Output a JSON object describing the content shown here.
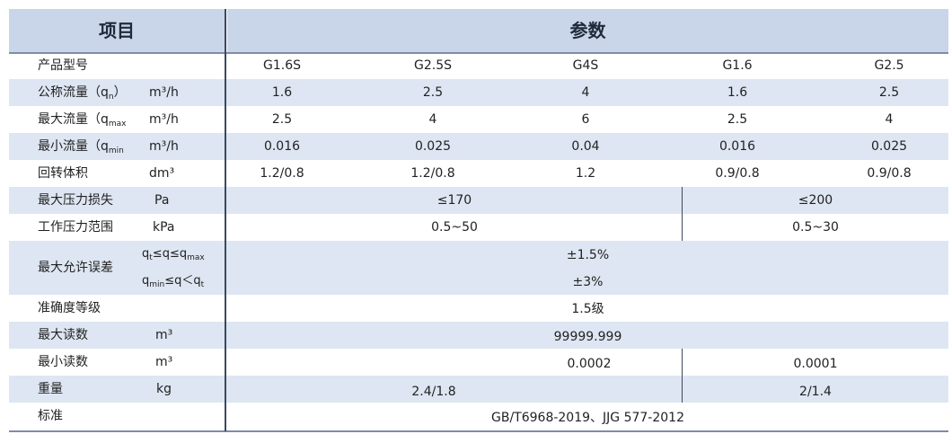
{
  "header": {
    "col1": "项目",
    "col2": "参数"
  },
  "models": [
    "G1.6S",
    "G2.5S",
    "G4S",
    "G1.6",
    "G2.5"
  ],
  "rows": {
    "model": {
      "label": "产品型号"
    },
    "nominal_flow": {
      "label_pre": "公称流量（q",
      "label_sub": "n",
      "label_post": "）",
      "unit": "m³/h",
      "values": [
        "1.6",
        "2.5",
        "4",
        "1.6",
        "2.5"
      ]
    },
    "max_flow": {
      "label_pre": "最大流量（q",
      "label_sub": "max",
      "label_post": "",
      "unit": "m³/h",
      "values": [
        "2.5",
        "4",
        "6",
        "2.5",
        "4"
      ]
    },
    "min_flow": {
      "label_pre": "最小流量（q",
      "label_sub": "min",
      "label_post": "",
      "unit": "m³/h",
      "values": [
        "0.016",
        "0.025",
        "0.04",
        "0.016",
        "0.025"
      ]
    },
    "cyclic_volume": {
      "label": "回转体积",
      "unit": "dm³",
      "values": [
        "1.2/0.8",
        "1.2/0.8",
        "1.2",
        "0.9/0.8",
        "0.9/0.8"
      ]
    },
    "max_pressure_loss": {
      "label": "最大压力损失",
      "unit": "Pa",
      "left": "≤170",
      "right": "≤200"
    },
    "pressure_range": {
      "label": "工作压力范围",
      "unit": "kPa",
      "left": "0.5~50",
      "right": "0.5~30"
    },
    "max_error": {
      "label": "最大允许误差",
      "cond1": {
        "a": "q",
        "a_sub": "t",
        "b": "≤q≤q",
        "b_sub": "max"
      },
      "cond2": {
        "a": "q",
        "a_sub": "min",
        "b": "≤q＜q",
        "b_sub": "t"
      },
      "value1": "±1.5%",
      "value2": "±3%"
    },
    "accuracy": {
      "label": "准确度等级",
      "value": "1.5级"
    },
    "max_reading": {
      "label": "最大读数",
      "unit": "m³",
      "value": "99999.999"
    },
    "min_reading": {
      "label": "最小读数",
      "unit": "m³",
      "left": "0.0002",
      "right": "0.0001"
    },
    "weight": {
      "label": "重量",
      "unit": "kg",
      "left": "2.4/1.8",
      "right": "2/1.4"
    },
    "standard": {
      "label": "标准",
      "value": "GB/T6968-2019、JJG 577-2012"
    }
  },
  "colors": {
    "header_bg": "#c9d6ea",
    "band_bg": "#dde6f2",
    "divider": "#3a4a5e"
  }
}
